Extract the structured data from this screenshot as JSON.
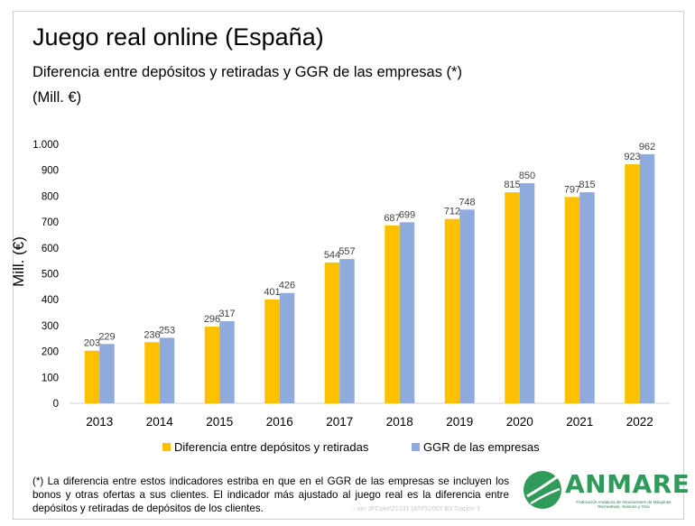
{
  "header": {
    "title": "Juego real online (España)",
    "subtitle": "Diferencia entre depósitos y retiradas y GGR de las empresas (*)",
    "unit": "(Mill. €)"
  },
  "chart_data": {
    "type": "bar",
    "ylabel": "Mill. (€)",
    "xlabel": "",
    "ylim": [
      0,
      1000
    ],
    "y_ticks": [
      0,
      100,
      200,
      300,
      400,
      500,
      600,
      700,
      800,
      900,
      1000
    ],
    "y_tick_labels": [
      "0",
      "100",
      "200",
      "300",
      "400",
      "500",
      "600",
      "700",
      "800",
      "900",
      "1.000"
    ],
    "grid": false,
    "legend": "bottom",
    "categories": [
      "2013",
      "2014",
      "2015",
      "2016",
      "2017",
      "2018",
      "2019",
      "2020",
      "2021",
      "2022"
    ],
    "series": [
      {
        "name": "Diferencia entre depósitos y retiradas",
        "color": "#FFC000",
        "values": [
          203,
          236,
          296,
          401,
          544,
          687,
          712,
          815,
          797,
          923
        ],
        "labels": [
          "203",
          "236",
          "296",
          "401",
          "544",
          "687",
          "712",
          "815",
          "797",
          "923"
        ]
      },
      {
        "name": "GGR de las empresas",
        "color": "#8FAADC",
        "values": [
          229,
          253,
          317,
          426,
          557,
          699,
          748,
          850,
          815,
          962
        ],
        "labels": [
          "229",
          "253",
          "317",
          "426",
          "557",
          "699",
          "748",
          "850",
          "815",
          "962"
        ]
      }
    ]
  },
  "footnote": "(*) La diferencia entre estos indicadores estriba en que en el GGR de las empresas se incluyen los bonos y otras ofertas a sus clientes. El indicador más ajustado al juego real es la diferencia entre depósitos y retiradas de depósitos de los clientes.",
  "logo": {
    "name": "ANMARE",
    "tagline": "Federación Andaluza de Asociaciones de Máquinas Recreativas, Salones y Ocio",
    "color": "#2F9A5A"
  },
  "watermark": "...om JPCoke\\21331 (ATP)\\2007 B3 Tracker 1"
}
